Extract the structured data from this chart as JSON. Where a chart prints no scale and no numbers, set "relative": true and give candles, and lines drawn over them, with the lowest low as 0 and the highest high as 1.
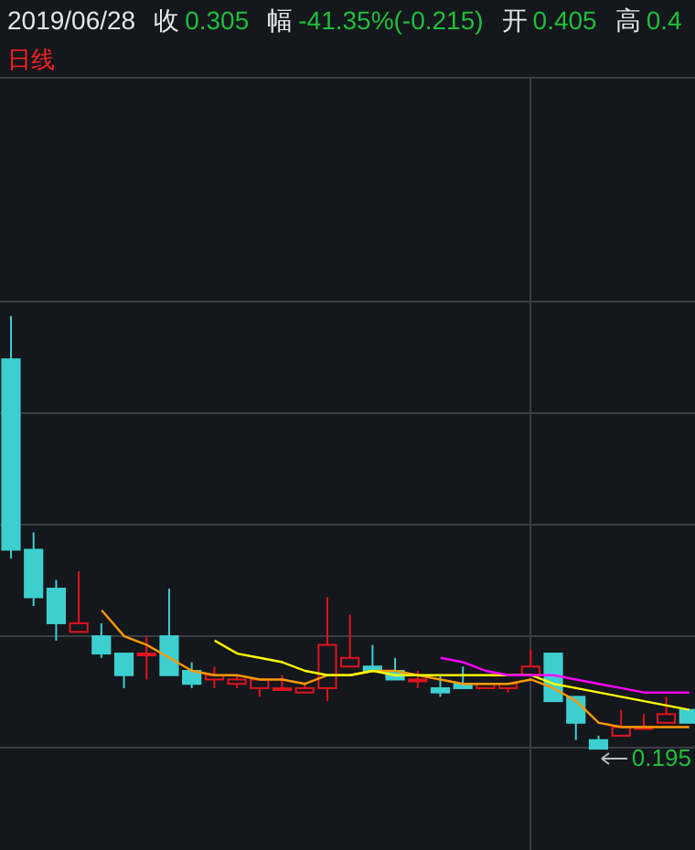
{
  "chart_data": {
    "type": "candlestick",
    "title": "2019/06/28",
    "subtitle": "日线",
    "relative": true,
    "grid": true,
    "categories": [
      null,
      null,
      null,
      null,
      null,
      null,
      null,
      null,
      null,
      null,
      null,
      null,
      null,
      null,
      null,
      null,
      null,
      null,
      null,
      null,
      null,
      null,
      null,
      null,
      null,
      null,
      null,
      null,
      null,
      null,
      null
    ],
    "ohlc": [
      [
        0.9,
        1.0,
        0.44,
        0.46
      ],
      [
        0.46,
        0.5,
        0.33,
        0.35
      ],
      [
        0.37,
        0.39,
        0.25,
        0.29
      ],
      [
        0.27,
        0.41,
        0.27,
        0.29
      ],
      [
        0.26,
        0.29,
        0.21,
        0.22
      ],
      [
        0.22,
        0.22,
        0.14,
        0.17
      ],
      [
        0.22,
        0.26,
        0.16,
        0.22
      ],
      [
        0.26,
        0.37,
        0.17,
        0.17
      ],
      [
        0.18,
        0.2,
        0.14,
        0.15
      ],
      [
        0.16,
        0.19,
        0.14,
        0.17
      ],
      [
        0.15,
        0.17,
        0.14,
        0.16
      ],
      [
        0.14,
        0.16,
        0.12,
        0.16
      ],
      [
        0.14,
        0.17,
        0.14,
        0.14
      ],
      [
        0.13,
        0.15,
        0.13,
        0.14
      ],
      [
        0.14,
        0.35,
        0.11,
        0.24
      ],
      [
        0.19,
        0.31,
        0.19,
        0.21
      ],
      [
        0.19,
        0.24,
        0.18,
        0.18
      ],
      [
        0.18,
        0.21,
        0.16,
        0.16
      ],
      [
        0.16,
        0.18,
        0.14,
        0.16
      ],
      [
        0.14,
        0.17,
        0.12,
        0.13
      ],
      [
        0.15,
        0.19,
        0.14,
        0.14
      ],
      [
        0.14,
        0.15,
        0.14,
        0.15
      ],
      [
        0.14,
        0.15,
        0.13,
        0.15
      ],
      [
        0.17,
        0.23,
        0.17,
        0.19
      ],
      [
        0.22,
        0.22,
        0.11,
        0.11
      ],
      [
        0.12,
        0.12,
        0.02,
        0.06
      ],
      [
        0.02,
        0.03,
        0.0,
        0.0
      ],
      [
        0.03,
        0.09,
        0.03,
        0.05
      ],
      [
        0.05,
        0.08,
        0.05,
        0.05
      ],
      [
        0.06,
        0.12,
        0.06,
        0.08
      ],
      [
        0.09,
        0.09,
        0.06,
        0.06
      ]
    ],
    "series": [
      {
        "type": "line",
        "color": "#ff9900",
        "values": [
          null,
          null,
          null,
          null,
          0.32,
          0.26,
          0.24,
          0.21,
          0.18,
          0.17,
          0.17,
          0.16,
          0.16,
          0.15,
          0.17,
          0.17,
          0.18,
          0.18,
          0.17,
          0.16,
          0.15,
          0.15,
          0.15,
          0.16,
          0.14,
          0.11,
          0.06,
          0.05,
          0.05,
          0.05,
          0.05
        ]
      },
      {
        "type": "line",
        "color": "#ffff00",
        "values": [
          null,
          null,
          null,
          null,
          null,
          null,
          null,
          null,
          null,
          0.25,
          0.22,
          0.21,
          0.2,
          0.18,
          0.17,
          0.17,
          0.18,
          0.17,
          0.17,
          0.17,
          0.17,
          0.17,
          0.17,
          0.17,
          0.15,
          0.14,
          0.13,
          0.12,
          0.11,
          0.1,
          0.09
        ]
      },
      {
        "type": "line",
        "color": "#ff00ff",
        "values": [
          null,
          null,
          null,
          null,
          null,
          null,
          null,
          null,
          null,
          null,
          null,
          null,
          null,
          null,
          null,
          null,
          null,
          null,
          null,
          0.21,
          0.2,
          0.18,
          0.17,
          0.17,
          0.17,
          0.16,
          0.15,
          0.14,
          0.13,
          0.13,
          0.13
        ]
      }
    ],
    "annotations": [
      "收 0.305",
      "幅 -41.35%(-0.215)",
      "开 0.405",
      "高 0.4",
      "0.195"
    ]
  }
}
